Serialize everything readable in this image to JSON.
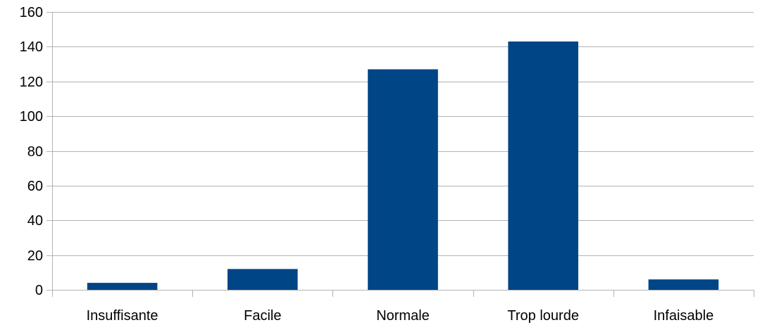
{
  "chart_data": {
    "type": "bar",
    "categories": [
      "Insuffisante",
      "Facile",
      "Normale",
      "Trop lourde",
      "Infaisable"
    ],
    "values": [
      4,
      12,
      127,
      143,
      6
    ],
    "title": "",
    "xlabel": "",
    "ylabel": "",
    "ylim": [
      0,
      160
    ],
    "yticks": [
      "0",
      "20",
      "40",
      "60",
      "80",
      "100",
      "120",
      "140",
      "160"
    ],
    "grid": true,
    "legend": "none",
    "bar_color": "#004586",
    "grid_color": "#b3b3b3"
  }
}
